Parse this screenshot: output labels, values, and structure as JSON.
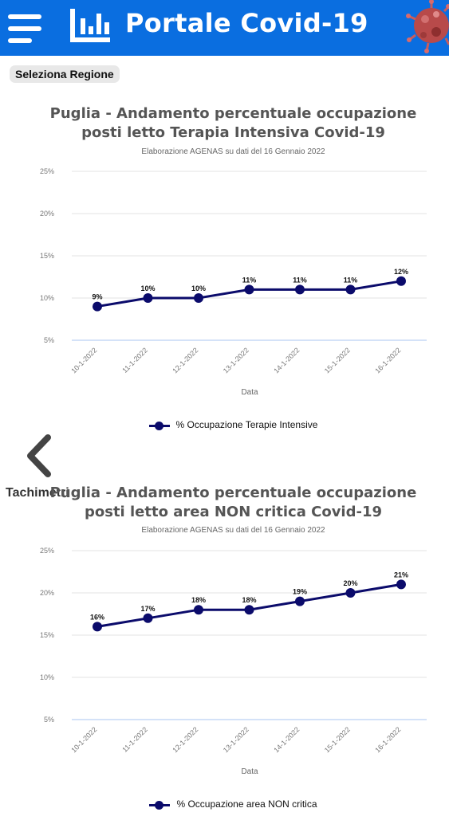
{
  "header": {
    "title": "Portale Covid-19",
    "menu_icon": "hamburger-menu-icon",
    "logo_icon": "bar-chart-logo-icon",
    "image": "coronavirus-image",
    "background": "#0a6ee0"
  },
  "controls": {
    "select_region_label": "Seleziona Regione",
    "prev_icon": "chevron-left-icon",
    "side_label": "Tachimetri"
  },
  "charts": [
    {
      "title_line1": "Puglia - Andamento percentuale occupazione",
      "title_line2": "posti letto Terapia Intensiva Covid-19",
      "subtitle": "Elaborazione AGENAS su dati del 16 Gennaio 2022",
      "legend": "% Occupazione Terapie Intensive"
    },
    {
      "title_line1": "Puglia - Andamento percentuale occupazione",
      "title_line2": "posti letto area NON critica Covid-19",
      "subtitle": "Elaborazione AGENAS su dati del 16 Gennaio 2022",
      "legend": "% Occupazione area NON critica"
    }
  ],
  "chart_data": [
    {
      "type": "line",
      "title": "Puglia - Andamento percentuale occupazione posti letto Terapia Intensiva Covid-19",
      "subtitle": "Elaborazione AGENAS su dati del 16 Gennaio 2022",
      "xlabel": "Data",
      "ylabel": "",
      "categories": [
        "10-1-2022",
        "11-1-2022",
        "12-1-2022",
        "13-1-2022",
        "14-1-2022",
        "15-1-2022",
        "16-1-2022"
      ],
      "y_ticks": [
        "5%",
        "10%",
        "15%",
        "20%",
        "25%"
      ],
      "ylim": [
        5,
        25
      ],
      "series": [
        {
          "name": "% Occupazione Terapie Intensive",
          "values": [
            9,
            10,
            10,
            11,
            11,
            11,
            12
          ],
          "labels": [
            "9%",
            "10%",
            "10%",
            "11%",
            "11%",
            "11%",
            "12%"
          ]
        }
      ],
      "color": "#0b0b6b",
      "grid": true,
      "legend_position": "bottom"
    },
    {
      "type": "line",
      "title": "Puglia - Andamento percentuale occupazione posti letto area NON critica Covid-19",
      "subtitle": "Elaborazione AGENAS su dati del 16 Gennaio 2022",
      "xlabel": "Data",
      "ylabel": "",
      "categories": [
        "10-1-2022",
        "11-1-2022",
        "12-1-2022",
        "13-1-2022",
        "14-1-2022",
        "15-1-2022",
        "16-1-2022"
      ],
      "y_ticks": [
        "5%",
        "10%",
        "15%",
        "20%",
        "25%"
      ],
      "ylim": [
        5,
        25
      ],
      "series": [
        {
          "name": "% Occupazione area NON critica",
          "values": [
            16,
            17,
            18,
            18,
            19,
            20,
            21
          ],
          "labels": [
            "16%",
            "17%",
            "18%",
            "18%",
            "19%",
            "20%",
            "21%"
          ]
        }
      ],
      "color": "#0b0b6b",
      "grid": true,
      "legend_position": "bottom"
    }
  ]
}
